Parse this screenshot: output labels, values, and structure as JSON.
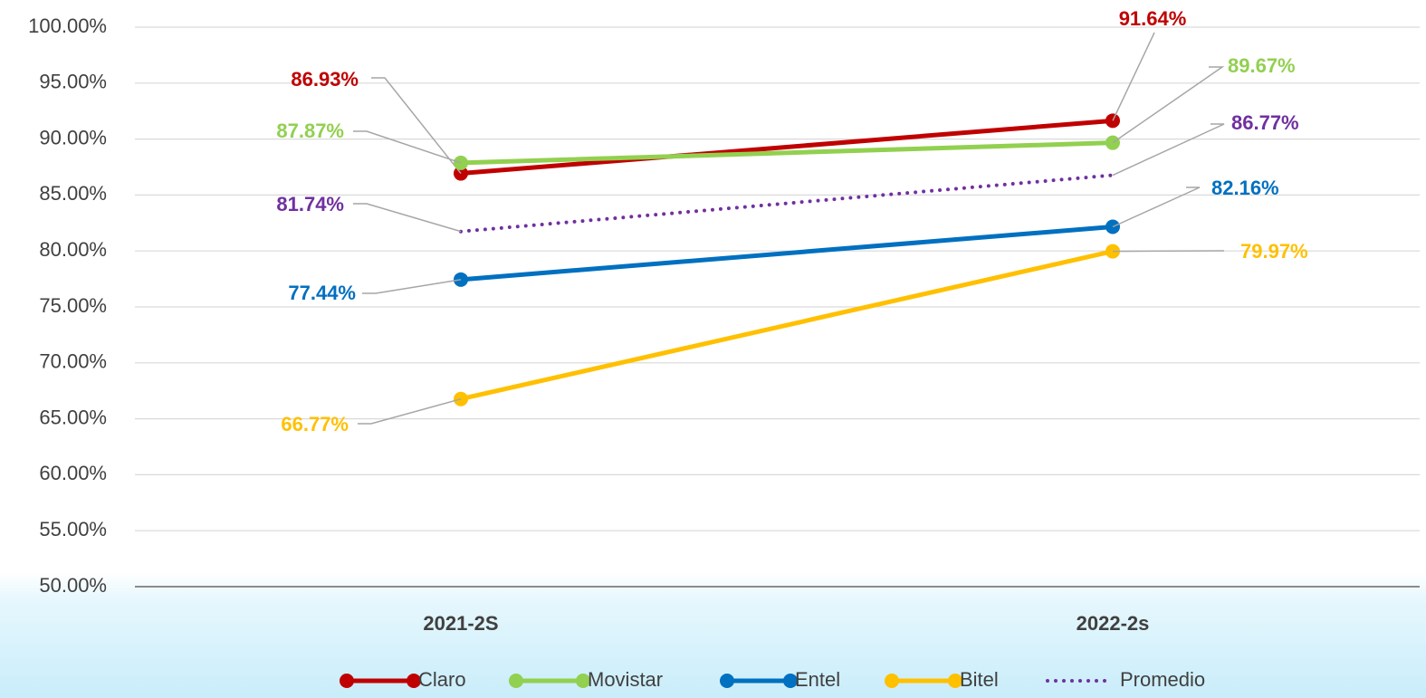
{
  "chart_data": {
    "type": "line",
    "categories": [
      "2021-2S",
      "2022-2s"
    ],
    "series": [
      {
        "name": "Claro",
        "color": "#c00000",
        "line_style": "solid",
        "values": [
          86.93,
          91.64
        ],
        "value_labels": [
          "86.93%",
          "91.64%"
        ]
      },
      {
        "name": "Movistar",
        "color": "#92d050",
        "line_style": "solid",
        "values": [
          87.87,
          89.67
        ],
        "value_labels": [
          "87.87%",
          "89.67%"
        ]
      },
      {
        "name": "Entel",
        "color": "#0070c0",
        "line_style": "solid",
        "values": [
          77.44,
          82.16
        ],
        "value_labels": [
          "77.44%",
          "82.16%"
        ]
      },
      {
        "name": "Bitel",
        "color": "#ffc000",
        "line_style": "solid",
        "values": [
          66.77,
          79.97
        ],
        "value_labels": [
          "66.77%",
          "79.97%"
        ]
      },
      {
        "name": "Promedio",
        "color": "#7030a0",
        "line_style": "dotted",
        "values": [
          81.74,
          86.77
        ],
        "value_labels": [
          "81.74%",
          "86.77%"
        ]
      }
    ],
    "ylim": [
      50,
      100
    ],
    "yticks": [
      {
        "value": 50,
        "label": "50.00%"
      },
      {
        "value": 55,
        "label": "55.00%"
      },
      {
        "value": 60,
        "label": "60.00%"
      },
      {
        "value": 65,
        "label": "65.00%"
      },
      {
        "value": 70,
        "label": "70.00%"
      },
      {
        "value": 75,
        "label": "75.00%"
      },
      {
        "value": 80,
        "label": "80.00%"
      },
      {
        "value": 85,
        "label": "85.00%"
      },
      {
        "value": 90,
        "label": "90.00%"
      },
      {
        "value": 95,
        "label": "95.00%"
      },
      {
        "value": 100,
        "label": "100.00%"
      }
    ],
    "grid": true,
    "legend": "bottom"
  }
}
